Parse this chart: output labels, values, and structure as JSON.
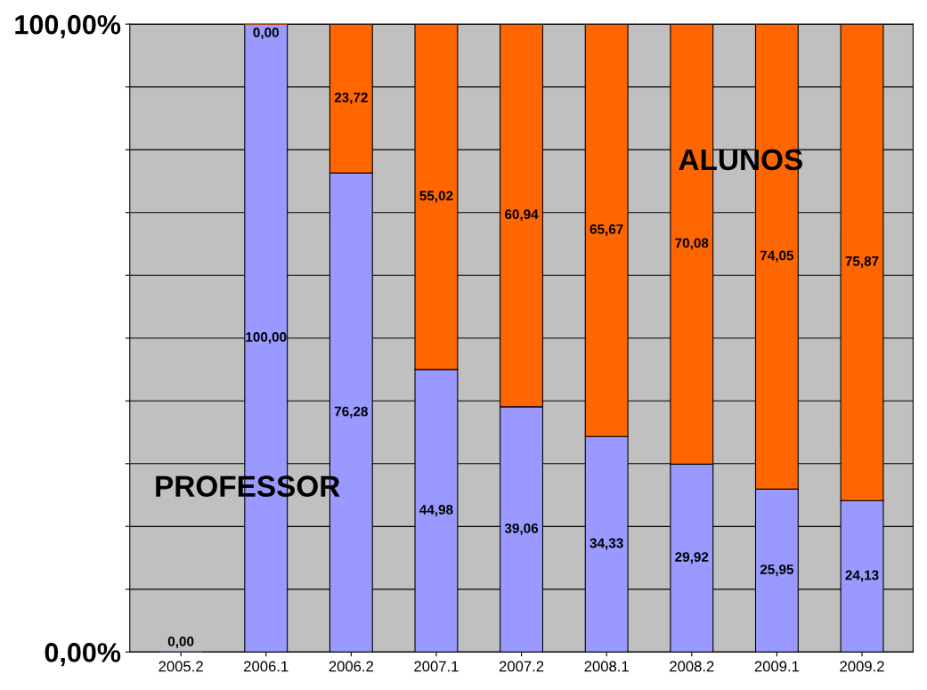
{
  "chart_data": {
    "type": "bar",
    "stacked": true,
    "categories": [
      "2005.2",
      "2006.1",
      "2006.2",
      "2007.1",
      "2007.2",
      "2008.1",
      "2008.2",
      "2009.1",
      "2009.2"
    ],
    "series": [
      {
        "name": "PROFESSOR",
        "color": "#9999ff",
        "values": [
          0,
          100,
          76.28,
          44.98,
          39.06,
          34.33,
          29.92,
          25.95,
          24.13
        ],
        "value_labels": [
          "0,00",
          "100,00",
          "76,28",
          "44,98",
          "39,06",
          "34,33",
          "29,92",
          "25,95",
          "24,13"
        ]
      },
      {
        "name": "ALUNOS",
        "color": "#ff6600",
        "values": [
          null,
          0,
          23.72,
          55.02,
          60.94,
          65.67,
          70.08,
          74.05,
          75.87
        ],
        "value_labels": [
          null,
          "0,00",
          "23,72",
          "55,02",
          "60,94",
          "65,67",
          "70,08",
          "74,05",
          "75,87"
        ]
      }
    ],
    "ylim": [
      0,
      100
    ],
    "yticks": [
      {
        "value": 0,
        "label": "0,00%"
      },
      {
        "value": 10,
        "label": null
      },
      {
        "value": 20,
        "label": null
      },
      {
        "value": 30,
        "label": null
      },
      {
        "value": 40,
        "label": null
      },
      {
        "value": 50,
        "label": null
      },
      {
        "value": 60,
        "label": null
      },
      {
        "value": 70,
        "label": null
      },
      {
        "value": 80,
        "label": null
      },
      {
        "value": 90,
        "label": null
      },
      {
        "value": 100,
        "label": "100,00%"
      }
    ],
    "grid": "y",
    "legend": false
  }
}
